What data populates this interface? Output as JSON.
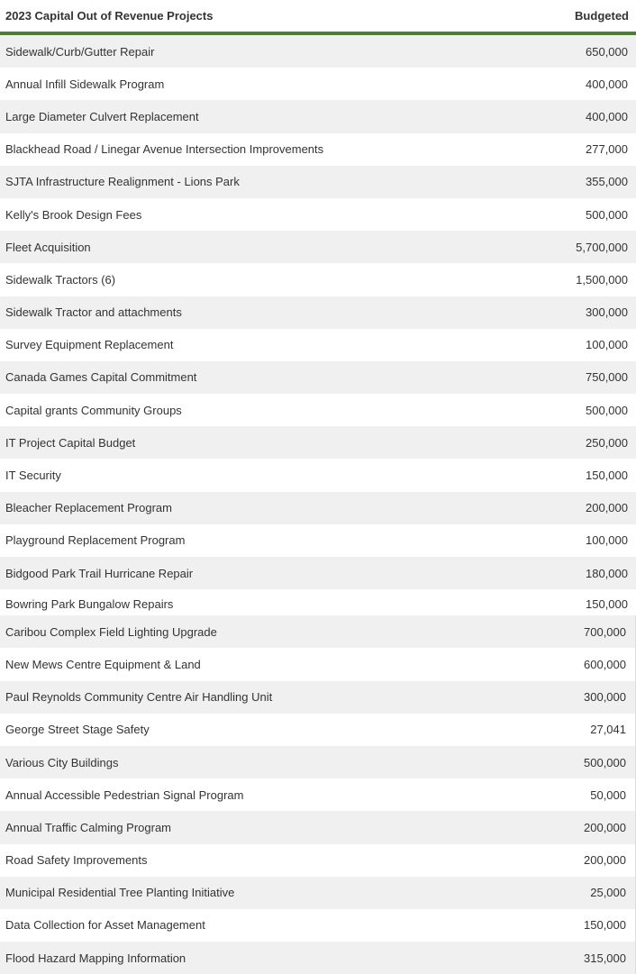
{
  "header": {
    "project": "2023 Capital Out of Revenue Projects",
    "budgeted": "Budgeted"
  },
  "colors": {
    "accent": "#4a7f35",
    "stripe": "#f0f0f0"
  },
  "rows_part1": [
    {
      "name": "Sidewalk/Curb/Gutter Repair",
      "value": "650,000"
    },
    {
      "name": "Annual Infill Sidewalk Program",
      "value": "400,000"
    },
    {
      "name": "Large Diameter Culvert Replacement",
      "value": "400,000"
    },
    {
      "name": "Blackhead Road / Linegar Avenue Intersection Improvements",
      "value": "277,000"
    },
    {
      "name": "SJTA Infrastructure Realignment - Lions Park",
      "value": "355,000"
    },
    {
      "name": "Kelly's Brook Design Fees",
      "value": "500,000"
    },
    {
      "name": "Fleet Acquisition",
      "value": "5,700,000"
    },
    {
      "name": "Sidewalk Tractors (6)",
      "value": "1,500,000"
    },
    {
      "name": "Sidewalk Tractor and attachments",
      "value": "300,000"
    },
    {
      "name": "Survey Equipment Replacement",
      "value": "100,000"
    },
    {
      "name": "Canada Games Capital Commitment",
      "value": "750,000"
    },
    {
      "name": "Capital grants Community Groups",
      "value": "500,000"
    },
    {
      "name": "IT Project Capital Budget",
      "value": "250,000"
    },
    {
      "name": "IT Security",
      "value": "150,000"
    },
    {
      "name": "Bleacher Replacement Program",
      "value": "200,000"
    },
    {
      "name": "Playground Replacement Program",
      "value": "100,000"
    },
    {
      "name": "Bidgood Park Trail Hurricane Repair",
      "value": "180,000"
    },
    {
      "name": "Bowring Park Bungalow Repairs",
      "value": "150,000"
    }
  ],
  "rows_part2": [
    {
      "name": "Caribou Complex Field Lighting Upgrade",
      "value": "700,000"
    },
    {
      "name": "New Mews Centre Equipment & Land",
      "value": "600,000"
    },
    {
      "name": "Paul Reynolds Community Centre Air Handling Unit",
      "value": "300,000"
    },
    {
      "name": "George Street Stage Safety",
      "value": "27,041"
    },
    {
      "name": "Various City Buildings",
      "value": "500,000"
    },
    {
      "name": "Annual Accessible Pedestrian Signal Program",
      "value": "50,000"
    },
    {
      "name": "Annual Traffic Calming Program",
      "value": "200,000"
    },
    {
      "name": "Road Safety Improvements",
      "value": "200,000"
    },
    {
      "name": "Municipal Residential Tree Planting Initiative",
      "value": "25,000"
    },
    {
      "name": "Data Collection for Asset Management",
      "value": "150,000"
    },
    {
      "name": "Flood Hazard Mapping Information",
      "value": "315,000"
    }
  ]
}
